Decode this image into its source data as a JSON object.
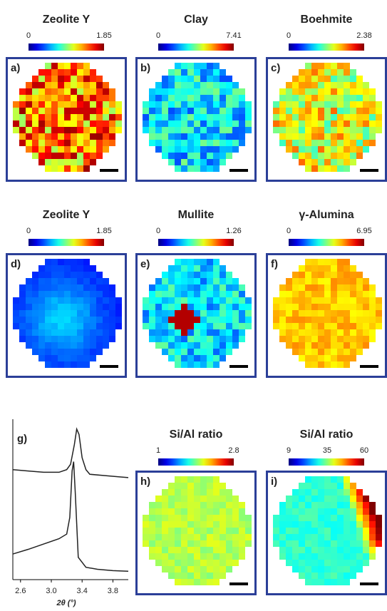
{
  "panels": [
    {
      "label": "a)",
      "title": "Zeolite Y",
      "colorbar_ticks": [
        0,
        1.85
      ]
    },
    {
      "label": "b)",
      "title": "Clay",
      "colorbar_ticks": [
        0,
        7.41
      ]
    },
    {
      "label": "c)",
      "title": "Boehmite",
      "colorbar_ticks": [
        0,
        2.38
      ]
    },
    {
      "label": "d)",
      "title": "Zeolite Y",
      "colorbar_ticks": [
        0,
        1.85
      ]
    },
    {
      "label": "e)",
      "title": "Mullite",
      "colorbar_ticks": [
        0,
        1.26
      ]
    },
    {
      "label": "f)",
      "title": "γ-Alumina",
      "colorbar_ticks": [
        0,
        6.95
      ]
    },
    {
      "label": "h)",
      "title": "Si/Al ratio",
      "colorbar_ticks": [
        1,
        2.8
      ]
    },
    {
      "label": "i)",
      "title": "Si/Al ratio",
      "colorbar_ticks": [
        9,
        35,
        60
      ]
    }
  ],
  "chart_data": {
    "type": "line",
    "annotation": "g)",
    "x_label": "2θ (°)",
    "xlim": [
      2.5,
      4.0
    ],
    "xticks": [
      2.6,
      {
        "value": 3,
        "label": "3.0"
      },
      3.4,
      3.8
    ],
    "ylim": [
      0,
      110
    ],
    "series": [
      {
        "color": "#222222",
        "x": [
          2.5,
          2.7,
          2.9,
          3.1,
          3.2,
          3.25,
          3.3,
          3.33,
          3.36,
          3.4,
          3.45,
          3.5,
          3.7,
          3.9,
          4.0
        ],
        "values": [
          78.5,
          77.5,
          76.5,
          76.5,
          78.5,
          82.5,
          97.5,
          109,
          105,
          87.5,
          78.5,
          75,
          74,
          73,
          72.5
        ]
      },
      {
        "color": "#222222",
        "x": [
          2.5,
          2.7,
          2.9,
          3.1,
          3.2,
          3.24,
          3.27,
          3.29,
          3.31,
          3.35,
          3.45,
          3.6,
          3.8,
          4.0
        ],
        "values": [
          15,
          18.5,
          22.5,
          26.5,
          30,
          42.5,
          77.5,
          84.5,
          62.5,
          12.5,
          5,
          3.5,
          2.5,
          2
        ]
      }
    ]
  }
}
